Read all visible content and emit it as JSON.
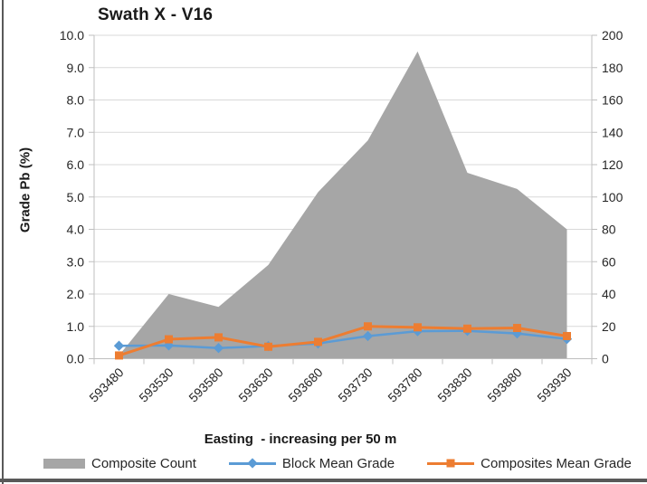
{
  "frame": {
    "background": "#ffffff",
    "border_color": "#595959"
  },
  "chart": {
    "text_color": "#262626",
    "gridline_color": "#d9d9d9",
    "axis_line_color": "#bfbfbf"
  },
  "chart_data": {
    "type": "combo (area + 2 lines)",
    "title": "Swath X - V16",
    "xlabel": "Easting  - increasing per 50 m",
    "ylabel_left": "Grade Pb (%)",
    "ylim_left": [
      0,
      10
    ],
    "ylim_right": [
      0,
      200
    ],
    "grid": true,
    "legend_position": "bottom",
    "categories": [
      "593480",
      "593530",
      "593580",
      "593630",
      "593680",
      "593730",
      "593780",
      "593830",
      "593880",
      "593930"
    ],
    "y_ticks_left": [
      "0.0",
      "1.0",
      "2.0",
      "3.0",
      "4.0",
      "5.0",
      "6.0",
      "7.0",
      "8.0",
      "9.0",
      "10.0"
    ],
    "y_ticks_right": [
      "0",
      "20",
      "40",
      "60",
      "80",
      "100",
      "120",
      "140",
      "160",
      "180",
      "200"
    ],
    "series": [
      {
        "name": "Composite Count",
        "type": "area",
        "axis": "right",
        "color": "#a6a6a6",
        "values": [
          2,
          40,
          32,
          58,
          103,
          135,
          190,
          115,
          105,
          80
        ]
      },
      {
        "name": "Block Mean Grade",
        "type": "line",
        "marker": "diamond",
        "axis": "left",
        "color": "#5b9bd5",
        "values": [
          0.4,
          0.41,
          0.33,
          0.39,
          0.47,
          0.7,
          0.85,
          0.86,
          0.78,
          0.61
        ]
      },
      {
        "name": "Composites Mean Grade",
        "type": "line",
        "marker": "square",
        "axis": "left",
        "color": "#ed7d31",
        "values": [
          0.1,
          0.6,
          0.66,
          0.37,
          0.52,
          1.0,
          0.97,
          0.93,
          0.95,
          0.7
        ]
      }
    ]
  }
}
